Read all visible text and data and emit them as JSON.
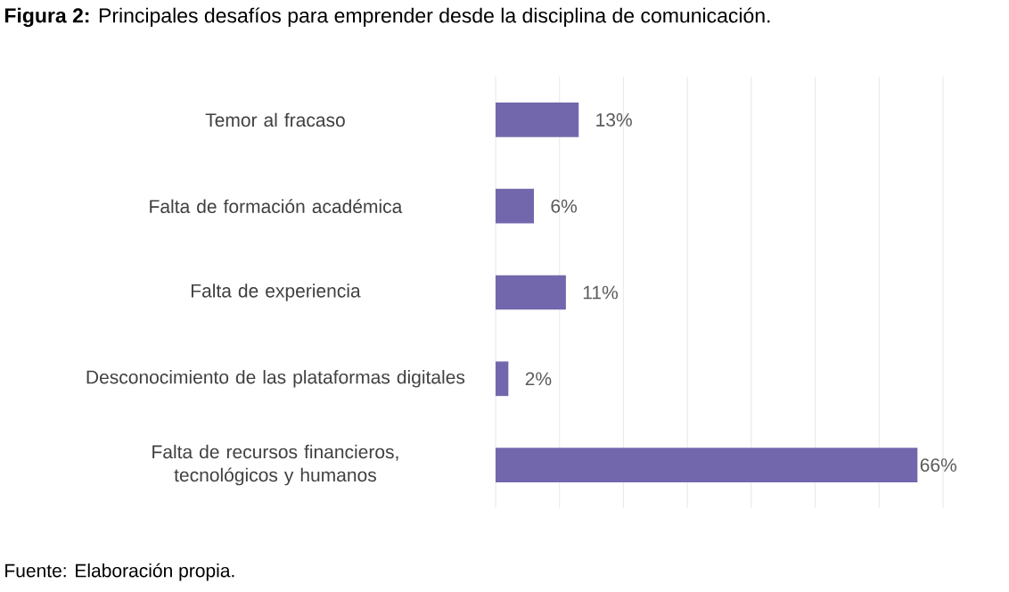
{
  "chart_data": {
    "type": "bar",
    "orientation": "horizontal",
    "title": "**Figura 2:** Principales desafíos para emprender desde la disciplina de comunicación.",
    "categories": [
      "Temor al fracaso",
      "Falta de formación académica",
      "Falta de experiencia",
      "Desconocimiento de las plataformas digitales",
      "Falta de recursos financieros, tecnológicos y humanos"
    ],
    "values": [
      13,
      6,
      11,
      2,
      66
    ],
    "value_labels": [
      "13%",
      "6%",
      "11%",
      "2%",
      "66%"
    ],
    "color": "#7267ad",
    "xlim": [
      0,
      70
    ],
    "xticks": [
      0,
      10,
      20,
      30,
      40,
      50,
      60,
      70
    ],
    "grid": "x",
    "tick_labels": "y",
    "legend": false,
    "annotations": [
      "Fuente:  Elaboración propia."
    ]
  }
}
